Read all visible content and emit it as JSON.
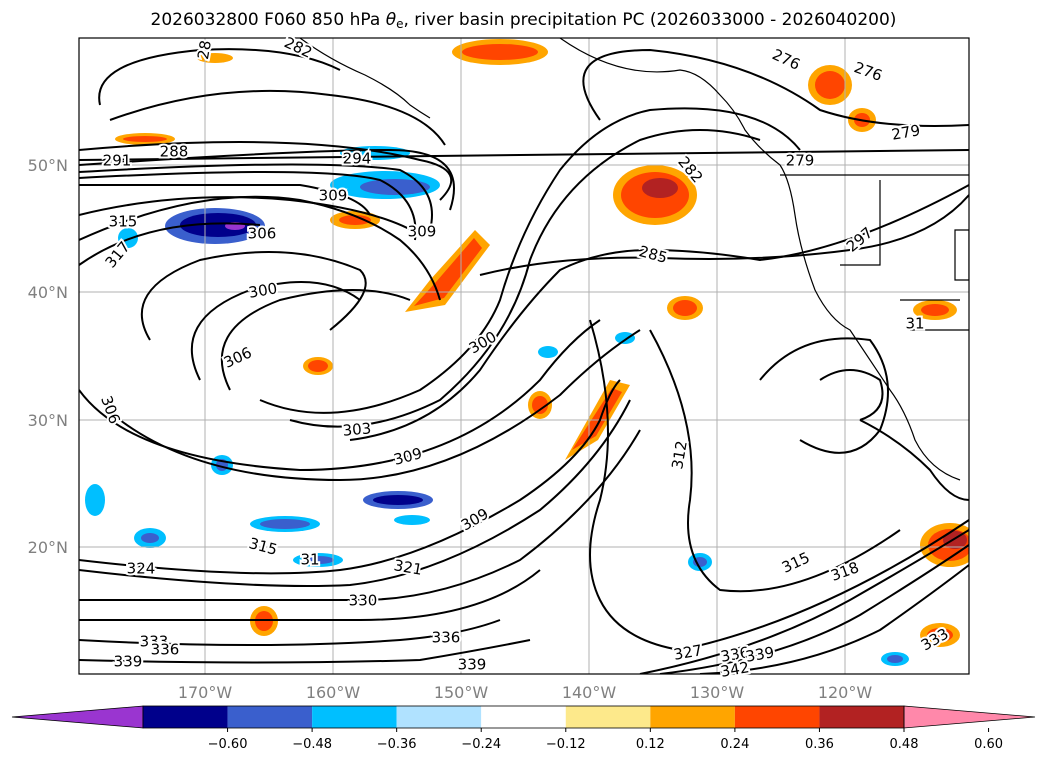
{
  "title": {
    "prefix": "2026032800 F060 850 hPa ",
    "theta": "θ",
    "sub": "e",
    "suffix": ", river basin precipitation PC (2026033000 - 2026040200)"
  },
  "axes": {
    "lat_labels": [
      "50°N",
      "40°N",
      "30°N",
      "20°N"
    ],
    "lon_labels": [
      "170°W",
      "160°W",
      "150°W",
      "140°W",
      "130°W",
      "120°W"
    ]
  },
  "colorbar": {
    "colors": [
      "#9a35d0",
      "#00008b",
      "#3a5fcd",
      "#00bfff",
      "#b0e2ff",
      "#ffffff",
      "#fde98b",
      "#ffa500",
      "#ff4500",
      "#b22222",
      "#ff88aa"
    ],
    "tick_labels": [
      "−0.60",
      "−0.48",
      "−0.36",
      "−0.24",
      "−0.12",
      "0.12",
      "0.24",
      "0.36",
      "0.48",
      "0.60"
    ]
  },
  "contour_labels": [
    "28",
    "282",
    "276",
    "276",
    "279",
    "279",
    "282",
    "291",
    "288",
    "294",
    "309",
    "315",
    "306",
    "309",
    "317",
    "297",
    "285",
    "300",
    "31",
    "300",
    "306",
    "306",
    "303",
    "309",
    "312",
    "309",
    "315",
    "31",
    "321",
    "324",
    "330",
    "315",
    "318",
    "336",
    "333",
    "336",
    "339",
    "339",
    "327",
    "336",
    "339",
    "342",
    "333"
  ]
}
